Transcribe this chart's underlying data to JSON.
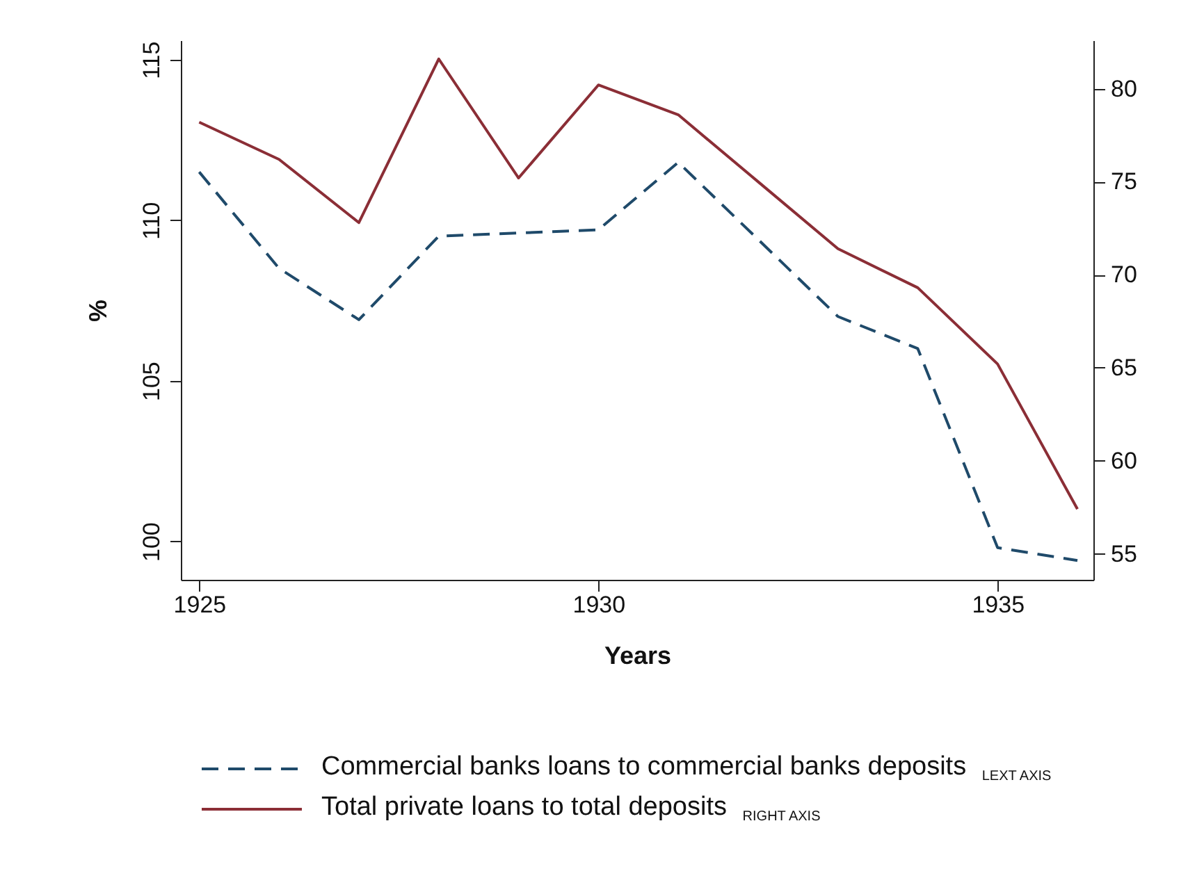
{
  "chart_data": {
    "type": "line",
    "xlabel": "Years",
    "ylabel": "%",
    "x": [
      1925,
      1926,
      1927,
      1928,
      1929,
      1930,
      1931,
      1932,
      1933,
      1934,
      1935,
      1936
    ],
    "xlim": [
      1924.77,
      1936.2
    ],
    "xticks": [
      1925,
      1930,
      1935
    ],
    "ylim": [
      98.8,
      115.6
    ],
    "yticks": [
      100,
      105,
      110,
      115
    ],
    "y2lim": [
      53.6,
      82.6
    ],
    "y2ticks": [
      55,
      60,
      65,
      70,
      75,
      80
    ],
    "grid": false,
    "legend": "bottom",
    "series": [
      {
        "name": "Commercial banks loans to commercial banks deposits $_{LEXT AXIS}$",
        "color": "#1f4a6a",
        "line_style": "dashed",
        "values": [
          111.5,
          108.5,
          106.9,
          109.5,
          109.6,
          109.7,
          111.8,
          109.4,
          107.0,
          106.0,
          99.8,
          99.4
        ]
      },
      {
        "name": "Total private loans to total deposits $_{RIGHT AXIS}$",
        "color": "#8b2e36",
        "line_style": "solid",
        "axis": "y2",
        "values": [
          78.2,
          76.2,
          72.8,
          81.6,
          75.2,
          80.2,
          78.6,
          75.0,
          71.4,
          69.3,
          65.2,
          57.4
        ]
      }
    ]
  }
}
